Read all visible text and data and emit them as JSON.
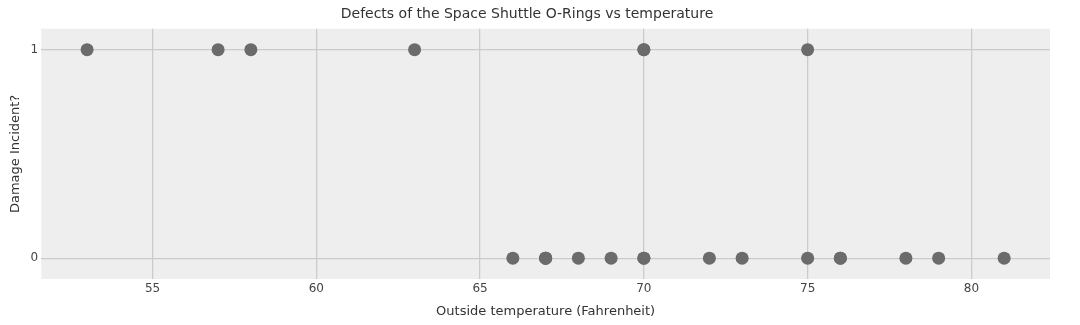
{
  "chart_data": {
    "type": "scatter",
    "title": "Defects of the Space Shuttle O-Rings vs temperature",
    "xlabel": "Outside temperature (Fahrenheit)",
    "ylabel": "Damage Incident?",
    "x": [
      66,
      70,
      69,
      68,
      67,
      72,
      73,
      70,
      57,
      63,
      70,
      78,
      67,
      53,
      67,
      75,
      70,
      81,
      76,
      79,
      75,
      76,
      58
    ],
    "values": [
      0,
      1,
      0,
      0,
      0,
      0,
      0,
      0,
      1,
      1,
      1,
      0,
      0,
      1,
      0,
      0,
      0,
      0,
      0,
      0,
      1,
      0,
      1
    ],
    "color": "#6b6b6b",
    "marker": "circle",
    "grid": true,
    "legend": false,
    "xlim": [
      51.6,
      82.4
    ],
    "xticks": [
      55,
      60,
      65,
      70,
      75,
      80
    ],
    "ylim": [
      -0.1,
      1.1
    ],
    "yticks": [
      0,
      1
    ]
  }
}
